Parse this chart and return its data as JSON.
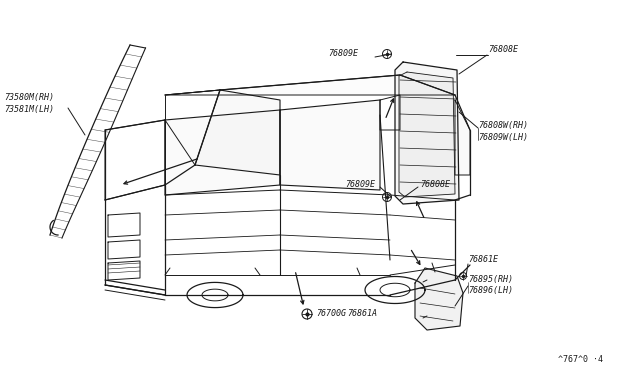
{
  "bg_color": "#ffffff",
  "lc": "#1a1a1a",
  "fig_width": 6.4,
  "fig_height": 3.72,
  "dpi": 100,
  "footnote": "^767^0 ·4",
  "fs": 6.0,
  "labels": {
    "73580M_RH": "73580M(RH)",
    "73581M_LH": "73581M(LH)",
    "76808E_top": "76808E",
    "76809E_top": "76809E",
    "76808W_RH": "76808W(RH)",
    "76809W_LH": "76809W(LH)",
    "76809E_bot": "76809E",
    "76808E_bot": "76808E",
    "76861E": "76861E",
    "76895_RH": "76895(RH)",
    "76896_LH": "76896(LH)",
    "76700G": "76700G",
    "76861A": "76861A"
  }
}
